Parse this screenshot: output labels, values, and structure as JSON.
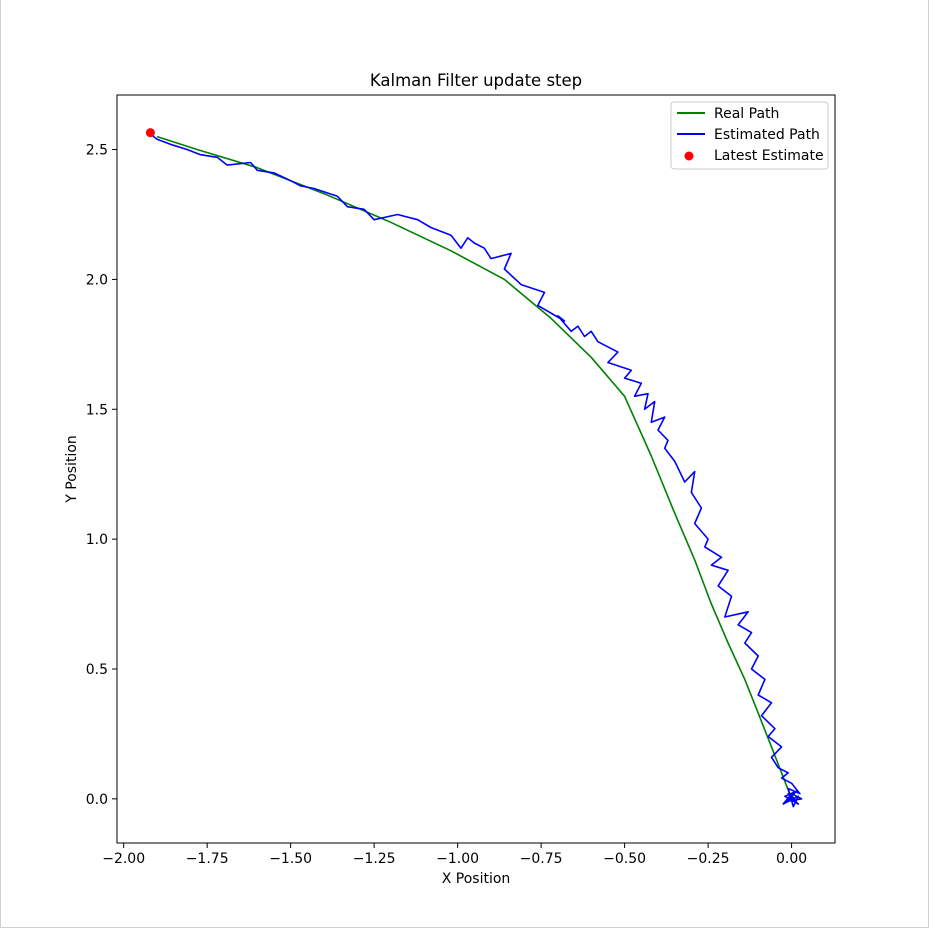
{
  "chart_data": {
    "type": "line",
    "title": "Kalman Filter update step",
    "xlabel": "X Position",
    "ylabel": "Y Position",
    "xlim": [
      -2.02,
      0.13
    ],
    "ylim": [
      -0.17,
      2.71
    ],
    "xticks": [
      -2.0,
      -1.75,
      -1.5,
      -1.25,
      -1.0,
      -0.75,
      -0.5,
      -0.25,
      0.0
    ],
    "xtick_labels": [
      "−2.00",
      "−1.75",
      "−1.50",
      "−1.25",
      "−1.00",
      "−0.75",
      "−0.50",
      "−0.25",
      "0.00"
    ],
    "yticks": [
      0.0,
      0.5,
      1.0,
      1.5,
      2.0,
      2.5
    ],
    "ytick_labels": [
      "0.0",
      "0.5",
      "1.0",
      "1.5",
      "2.0",
      "2.5"
    ],
    "grid": false,
    "legend_position": "top-right",
    "series": [
      {
        "name": "Real Path",
        "type": "line",
        "color": "#008000",
        "x": [
          0.0,
          -0.03,
          -0.06,
          -0.1,
          -0.14,
          -0.19,
          -0.24,
          -0.29,
          -0.35,
          -0.42,
          -0.5,
          -0.6,
          -0.72,
          -0.86,
          -1.02,
          -1.2,
          -1.4,
          -1.6,
          -1.78,
          -1.9
        ],
        "y": [
          0.0,
          0.1,
          0.2,
          0.33,
          0.46,
          0.6,
          0.75,
          0.92,
          1.1,
          1.32,
          1.55,
          1.7,
          1.85,
          2.0,
          2.11,
          2.22,
          2.33,
          2.43,
          2.5,
          2.55
        ]
      },
      {
        "name": "Estimated Path",
        "type": "line",
        "color": "#0000ff",
        "x": [
          0.01,
          -0.01,
          0.02,
          -0.02,
          0.015,
          -0.015,
          0.03,
          0.0,
          -0.025,
          0.02,
          0.005,
          -0.01,
          0.025,
          0.0,
          -0.03,
          -0.01,
          -0.04,
          -0.06,
          -0.03,
          -0.07,
          -0.05,
          -0.09,
          -0.06,
          -0.1,
          -0.08,
          -0.12,
          -0.1,
          -0.14,
          -0.12,
          -0.16,
          -0.13,
          -0.2,
          -0.18,
          -0.22,
          -0.19,
          -0.24,
          -0.21,
          -0.26,
          -0.25,
          -0.29,
          -0.27,
          -0.3,
          -0.29,
          -0.32,
          -0.35,
          -0.38,
          -0.37,
          -0.4,
          -0.38,
          -0.42,
          -0.41,
          -0.44,
          -0.43,
          -0.47,
          -0.45,
          -0.5,
          -0.48,
          -0.55,
          -0.52,
          -0.58,
          -0.6,
          -0.62,
          -0.64,
          -0.66,
          -0.7,
          -0.68,
          -0.76,
          -0.74,
          -0.81,
          -0.86,
          -0.84,
          -0.9,
          -0.92,
          -0.95,
          -0.97,
          -0.99,
          -1.02,
          -1.08,
          -1.12,
          -1.18,
          -1.25,
          -1.28,
          -1.33,
          -1.36,
          -1.43,
          -1.47,
          -1.5,
          -1.55,
          -1.6,
          -1.62,
          -1.69,
          -1.72,
          -1.77,
          -1.81,
          -1.86,
          -1.9,
          -1.92
        ],
        "y": [
          0.0,
          0.02,
          -0.02,
          0.01,
          0.03,
          -0.01,
          0.0,
          0.02,
          -0.02,
          0.01,
          -0.03,
          0.04,
          0.02,
          0.06,
          0.08,
          0.1,
          0.12,
          0.16,
          0.2,
          0.24,
          0.27,
          0.32,
          0.37,
          0.4,
          0.46,
          0.5,
          0.55,
          0.6,
          0.64,
          0.67,
          0.72,
          0.7,
          0.78,
          0.82,
          0.88,
          0.9,
          0.93,
          0.97,
          1.0,
          1.06,
          1.12,
          1.18,
          1.26,
          1.22,
          1.3,
          1.35,
          1.38,
          1.42,
          1.47,
          1.45,
          1.53,
          1.5,
          1.56,
          1.55,
          1.6,
          1.62,
          1.65,
          1.68,
          1.72,
          1.76,
          1.8,
          1.78,
          1.82,
          1.8,
          1.86,
          1.84,
          1.9,
          1.95,
          1.98,
          2.04,
          2.1,
          2.08,
          2.12,
          2.14,
          2.16,
          2.12,
          2.17,
          2.2,
          2.23,
          2.25,
          2.23,
          2.27,
          2.28,
          2.32,
          2.35,
          2.36,
          2.38,
          2.41,
          2.42,
          2.45,
          2.44,
          2.47,
          2.48,
          2.5,
          2.52,
          2.54,
          2.56
        ]
      },
      {
        "name": "Latest Estimate",
        "type": "scatter",
        "color": "#ff0000",
        "x": [
          -1.92
        ],
        "y": [
          2.565
        ]
      }
    ]
  }
}
